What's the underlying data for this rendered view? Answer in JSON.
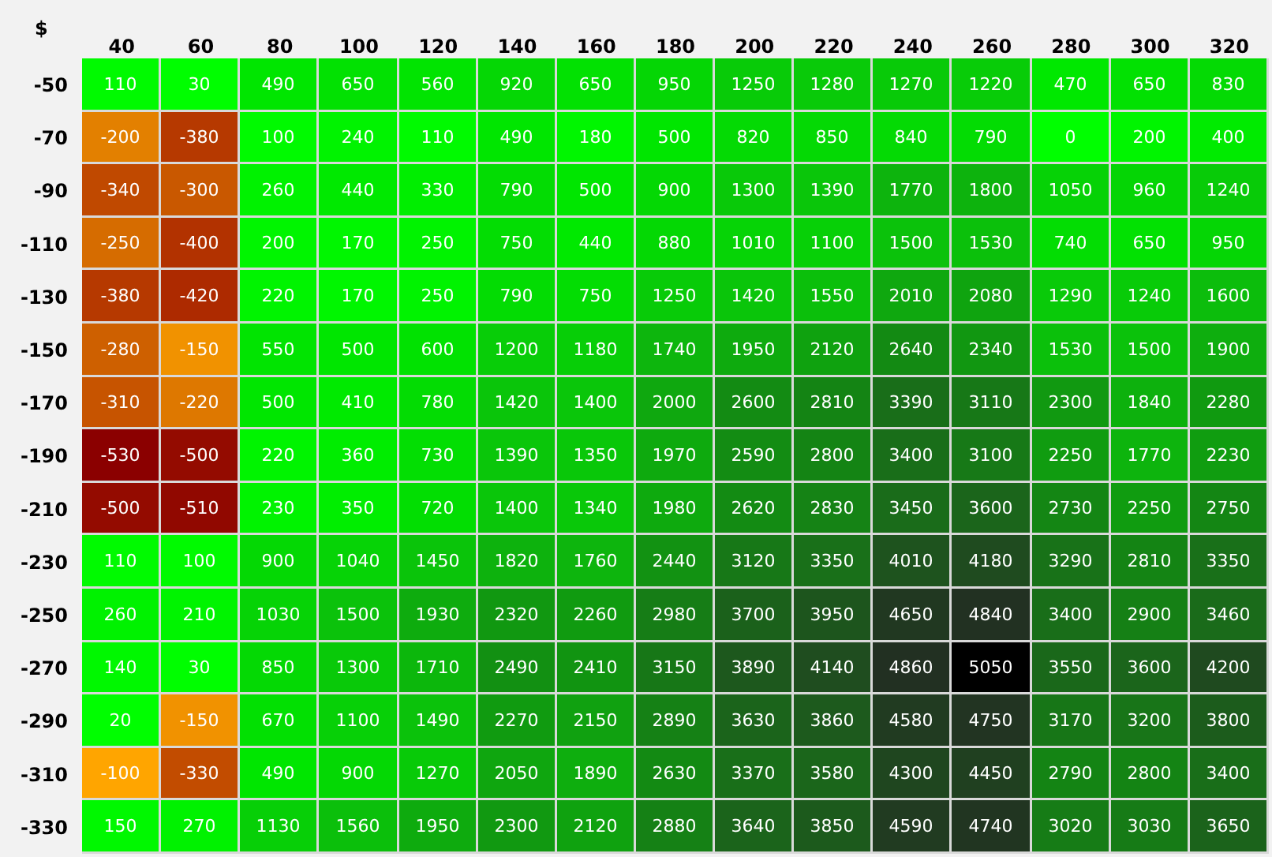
{
  "chart_data": {
    "type": "heatmap",
    "ylabel": "$",
    "categories": [
      "40",
      "60",
      "80",
      "100",
      "120",
      "140",
      "160",
      "180",
      "200",
      "220",
      "240",
      "260",
      "280",
      "300",
      "320"
    ],
    "y_categories": [
      "-50",
      "-70",
      "-90",
      "-110",
      "-130",
      "-150",
      "-170",
      "-190",
      "-210",
      "-230",
      "-250",
      "-270",
      "-290",
      "-310",
      "-330"
    ],
    "cells": [
      [
        110,
        30,
        490,
        650,
        560,
        920,
        650,
        950,
        1250,
        1280,
        1270,
        1220,
        470,
        650,
        830
      ],
      [
        -200,
        -380,
        100,
        240,
        110,
        490,
        180,
        500,
        820,
        850,
        840,
        790,
        0,
        200,
        400
      ],
      [
        -340,
        -300,
        260,
        440,
        330,
        790,
        500,
        900,
        1300,
        1390,
        1770,
        1800,
        1050,
        960,
        1240
      ],
      [
        -250,
        -400,
        200,
        170,
        250,
        750,
        440,
        880,
        1010,
        1100,
        1500,
        1530,
        740,
        650,
        950
      ],
      [
        -380,
        -420,
        220,
        170,
        250,
        790,
        750,
        1250,
        1420,
        1550,
        2010,
        2080,
        1290,
        1240,
        1600
      ],
      [
        -280,
        -150,
        550,
        500,
        600,
        1200,
        1180,
        1740,
        1950,
        2120,
        2640,
        2340,
        1530,
        1500,
        1900
      ],
      [
        -310,
        -220,
        500,
        410,
        780,
        1420,
        1400,
        2000,
        2600,
        2810,
        3390,
        3110,
        2300,
        1840,
        2280
      ],
      [
        -530,
        -500,
        220,
        360,
        730,
        1390,
        1350,
        1970,
        2590,
        2800,
        3400,
        3100,
        2250,
        1770,
        2230
      ],
      [
        -500,
        -510,
        230,
        350,
        720,
        1400,
        1340,
        1980,
        2620,
        2830,
        3450,
        3600,
        2730,
        2250,
        2750
      ],
      [
        110,
        100,
        900,
        1040,
        1450,
        1820,
        1760,
        2440,
        3120,
        3350,
        4010,
        4180,
        3290,
        2810,
        3350
      ],
      [
        260,
        210,
        1030,
        1500,
        1930,
        2320,
        2260,
        2980,
        3700,
        3950,
        4650,
        4840,
        3400,
        2900,
        3460
      ],
      [
        140,
        30,
        850,
        1300,
        1710,
        2490,
        2410,
        3150,
        3890,
        4140,
        4860,
        5050,
        3550,
        3600,
        4200
      ],
      [
        20,
        -150,
        670,
        1100,
        1490,
        2270,
        2150,
        2890,
        3630,
        3860,
        4580,
        4750,
        3170,
        3200,
        3800
      ],
      [
        -100,
        -330,
        490,
        900,
        1270,
        2050,
        1890,
        2630,
        3370,
        3580,
        4300,
        4450,
        2790,
        2800,
        3400
      ],
      [
        150,
        270,
        1130,
        1560,
        1950,
        2300,
        2120,
        2880,
        3640,
        3850,
        4590,
        4740,
        3020,
        3030,
        3650
      ]
    ],
    "data_labels": true
  }
}
